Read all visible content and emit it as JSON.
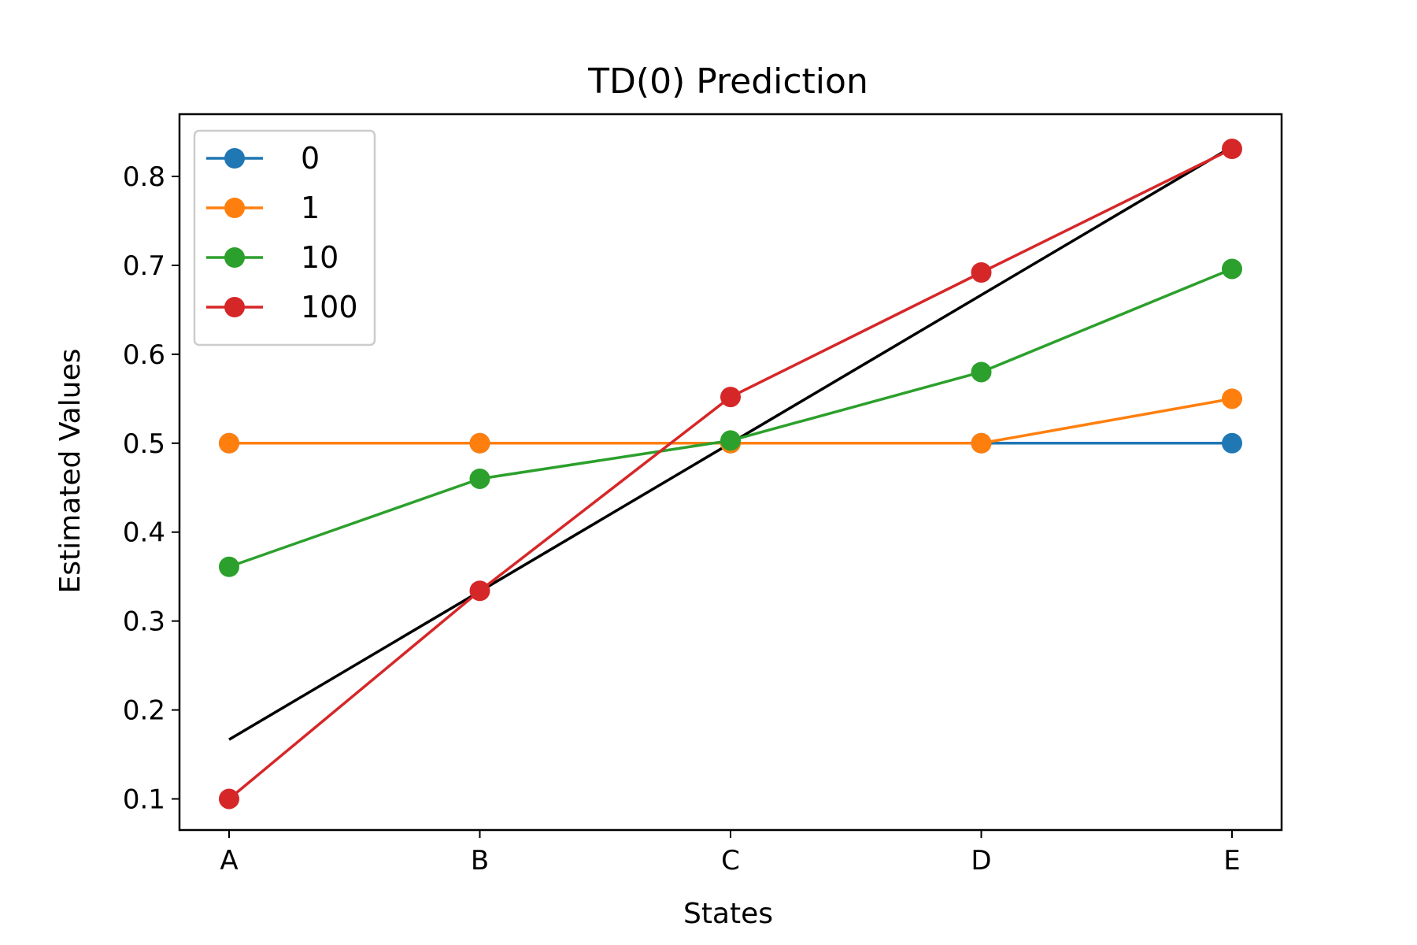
{
  "chart_data": {
    "type": "line",
    "title": "TD(0) Prediction",
    "xlabel": "States",
    "ylabel": "Estimated Values",
    "categories": [
      "A",
      "B",
      "C",
      "D",
      "E"
    ],
    "ylim": [
      0.065,
      0.87
    ],
    "yticks": [
      0.1,
      0.2,
      0.3,
      0.4,
      0.5,
      0.6,
      0.7,
      0.8
    ],
    "grid": false,
    "legend_position": "top-left",
    "true_values": {
      "x": [
        0,
        4
      ],
      "values": [
        0.1667,
        0.8333
      ],
      "color": "#000000"
    },
    "series": [
      {
        "name": "0",
        "color": "#1f77b4",
        "values": [
          0.5,
          0.5,
          0.5,
          0.5,
          0.5
        ]
      },
      {
        "name": "1",
        "color": "#ff7f0e",
        "values": [
          0.5,
          0.5,
          0.5,
          0.5,
          0.55
        ]
      },
      {
        "name": "10",
        "color": "#2ca02c",
        "values": [
          0.361,
          0.46,
          0.503,
          0.58,
          0.696
        ]
      },
      {
        "name": "100",
        "color": "#d62728",
        "values": [
          0.1,
          0.334,
          0.552,
          0.692,
          0.831
        ]
      }
    ]
  }
}
